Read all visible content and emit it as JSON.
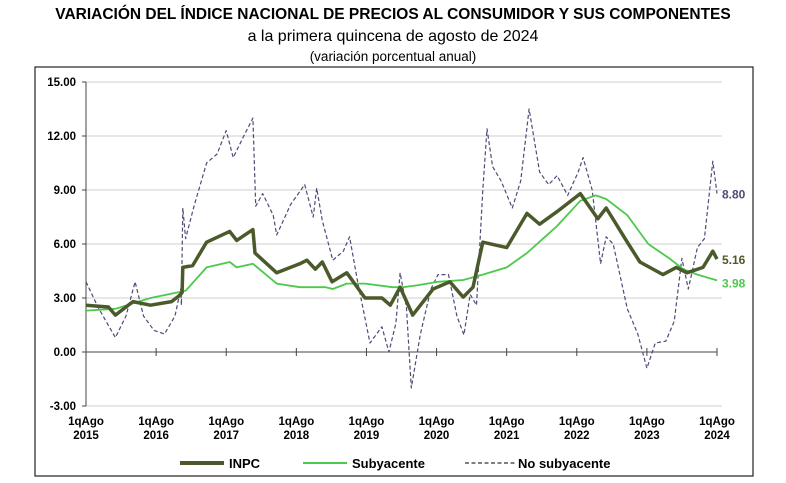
{
  "chart_data": {
    "type": "line",
    "title": "VARIACIÓN DEL ÍNDICE NACIONAL DE PRECIOS AL CONSUMIDOR Y SUS COMPONENTES",
    "subtitle": "a la primera quincena de agosto de 2024",
    "subtitle2": "(variación porcentual anual)",
    "xlabel": "",
    "ylabel": "",
    "ylim": [
      -3,
      15
    ],
    "yticks": [
      "15.00",
      "12.00",
      "9.00",
      "6.00",
      "3.00",
      "0.00",
      "-3.00"
    ],
    "ytick_values": [
      15,
      12,
      9,
      6,
      3,
      0,
      -3
    ],
    "xticks": [
      {
        "top": "1qAgo",
        "bottom": "2015",
        "x": 2015.58
      },
      {
        "top": "1qAgo",
        "bottom": "2016",
        "x": 2016.58
      },
      {
        "top": "1qAgo",
        "bottom": "2017",
        "x": 2017.58
      },
      {
        "top": "1qAgo",
        "bottom": "2018",
        "x": 2018.58
      },
      {
        "top": "1qAgo",
        "bottom": "2019",
        "x": 2019.58
      },
      {
        "top": "1qAgo",
        "bottom": "2020",
        "x": 2020.58
      },
      {
        "top": "1qAgo",
        "bottom": "2021",
        "x": 2021.58
      },
      {
        "top": "1qAgo",
        "bottom": "2022",
        "x": 2022.58
      },
      {
        "top": "1qAgo",
        "bottom": "2023",
        "x": 2023.58
      },
      {
        "top": "1qAgo",
        "bottom": "2024",
        "x": 2024.58
      }
    ],
    "xlim": [
      2015.58,
      2024.58
    ],
    "grid": true,
    "legend": "bottom",
    "series": [
      {
        "name": "INPC",
        "color": "#4b5a2a",
        "style": "solid-thick",
        "end_label": "5.16",
        "x": [
          2015.58,
          2015.9,
          2016.0,
          2016.25,
          2016.5,
          2016.8,
          2016.9,
          2016.95,
          2016.96,
          2017.1,
          2017.3,
          2017.63,
          2017.73,
          2017.96,
          2017.99,
          2018.3,
          2018.63,
          2018.73,
          2018.85,
          2018.95,
          2019.09,
          2019.3,
          2019.56,
          2019.8,
          2019.92,
          2020.06,
          2020.24,
          2020.53,
          2020.77,
          2020.96,
          2021.1,
          2021.24,
          2021.58,
          2021.87,
          2022.05,
          2022.3,
          2022.63,
          2022.88,
          2023.0,
          2023.3,
          2023.48,
          2023.81,
          2024.0,
          2024.15,
          2024.38,
          2024.52,
          2024.58
        ],
        "y": [
          2.6,
          2.5,
          2.05,
          2.8,
          2.6,
          2.8,
          3.1,
          3.3,
          4.7,
          4.8,
          6.1,
          6.7,
          6.2,
          6.8,
          5.5,
          4.4,
          4.9,
          5.1,
          4.6,
          5.0,
          3.9,
          4.4,
          3.0,
          3.0,
          2.6,
          3.6,
          2.05,
          3.5,
          3.9,
          3.05,
          3.6,
          6.1,
          5.8,
          7.7,
          7.1,
          7.8,
          8.8,
          7.4,
          8.0,
          6.1,
          5.0,
          4.3,
          4.7,
          4.4,
          4.7,
          5.6,
          5.16
        ]
      },
      {
        "name": "Subyacente",
        "color": "#4cc94c",
        "style": "solid",
        "end_label": "3.98",
        "x": [
          2015.58,
          2016.0,
          2016.5,
          2017.0,
          2017.3,
          2017.63,
          2017.73,
          2017.96,
          2018.3,
          2018.63,
          2019.0,
          2019.1,
          2019.3,
          2019.56,
          2019.95,
          2020.1,
          2020.3,
          2020.6,
          2020.96,
          2021.24,
          2021.58,
          2021.87,
          2022.1,
          2022.3,
          2022.63,
          2022.85,
          2023.0,
          2023.3,
          2023.6,
          2023.9,
          2024.1,
          2024.3,
          2024.58
        ],
        "y": [
          2.3,
          2.4,
          3.0,
          3.4,
          4.7,
          5.0,
          4.7,
          4.9,
          3.8,
          3.6,
          3.6,
          3.5,
          3.8,
          3.8,
          3.6,
          3.6,
          3.7,
          3.9,
          4.0,
          4.3,
          4.7,
          5.5,
          6.3,
          7.0,
          8.4,
          8.7,
          8.5,
          7.6,
          6.0,
          5.2,
          4.6,
          4.3,
          3.98
        ]
      },
      {
        "name": "No subyacente",
        "color": "#4f4a78",
        "style": "dashed",
        "end_label": "8.80",
        "x": [
          2015.58,
          2015.75,
          2016.0,
          2016.15,
          2016.28,
          2016.4,
          2016.55,
          2016.7,
          2016.85,
          2016.93,
          2016.94,
          2016.96,
          2017.0,
          2017.12,
          2017.3,
          2017.45,
          2017.58,
          2017.68,
          2017.83,
          2017.96,
          2018.0,
          2018.1,
          2018.25,
          2018.3,
          2018.5,
          2018.7,
          2018.82,
          2018.87,
          2018.95,
          2019.1,
          2019.25,
          2019.34,
          2019.45,
          2019.63,
          2019.8,
          2019.9,
          2020.0,
          2020.06,
          2020.15,
          2020.22,
          2020.35,
          2020.5,
          2020.6,
          2020.75,
          2020.87,
          2020.97,
          2021.06,
          2021.15,
          2021.24,
          2021.3,
          2021.38,
          2021.5,
          2021.66,
          2021.78,
          2021.9,
          2022.05,
          2022.18,
          2022.3,
          2022.45,
          2022.6,
          2022.67,
          2022.8,
          2022.92,
          2023.0,
          2023.1,
          2023.3,
          2023.45,
          2023.58,
          2023.7,
          2023.85,
          2023.97,
          2024.08,
          2024.17,
          2024.3,
          2024.4,
          2024.52,
          2024.58
        ],
        "y": [
          3.9,
          2.5,
          0.8,
          2.0,
          3.9,
          2.0,
          1.2,
          1.0,
          2.0,
          3.5,
          2.6,
          8.0,
          6.3,
          8.1,
          10.5,
          11.0,
          12.3,
          10.8,
          12.0,
          13.0,
          8.1,
          8.8,
          7.6,
          6.5,
          8.2,
          9.3,
          7.5,
          9.1,
          7.3,
          5.1,
          5.6,
          6.4,
          4.0,
          0.5,
          1.4,
          0.0,
          1.6,
          4.4,
          2.5,
          -2.0,
          1.0,
          3.5,
          4.3,
          4.3,
          2.0,
          0.95,
          3.2,
          2.6,
          9.0,
          12.4,
          10.3,
          9.5,
          8.0,
          9.5,
          13.5,
          10.0,
          9.3,
          9.8,
          8.7,
          10.0,
          10.8,
          9.0,
          4.9,
          6.4,
          6.0,
          2.4,
          1.0,
          -0.9,
          0.5,
          0.6,
          1.7,
          5.2,
          3.5,
          5.8,
          6.3,
          10.6,
          8.8
        ]
      }
    ]
  }
}
